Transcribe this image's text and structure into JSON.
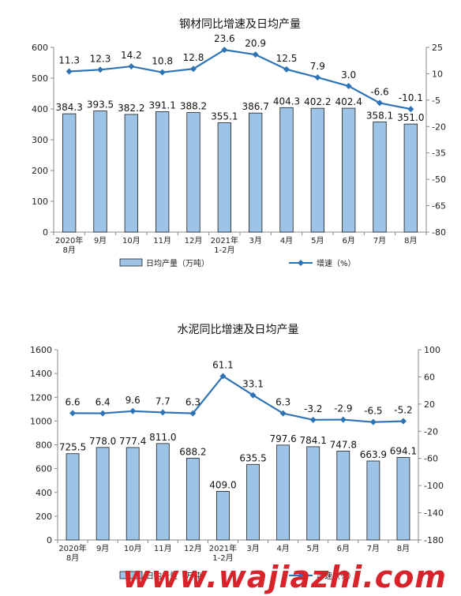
{
  "watermark": "www.wajiazhi.com",
  "chart_data": [
    {
      "type": "bar",
      "title": "钢材同比增速及日均产量",
      "categories": [
        "2020年\n8月",
        "9月",
        "10月",
        "11月",
        "12月",
        "2021年\n1-2月",
        "3月",
        "4月",
        "5月",
        "6月",
        "7月",
        "8月"
      ],
      "series": [
        {
          "name": "日均产量（万吨）",
          "type": "bar",
          "axis": "left",
          "values": [
            384.3,
            393.5,
            382.2,
            391.1,
            388.2,
            355.1,
            386.7,
            404.3,
            402.2,
            402.4,
            358.1,
            351.0
          ],
          "labels": [
            "384.3",
            "393.5",
            "382.2",
            "391.1",
            "388.2",
            "355.1",
            "386.7",
            "404.3",
            "402.2",
            "402.4",
            "358.1",
            "351.0"
          ]
        },
        {
          "name": "增速（%）",
          "type": "line",
          "axis": "right",
          "values": [
            11.3,
            12.3,
            14.2,
            10.8,
            12.8,
            23.6,
            20.9,
            12.5,
            7.9,
            3.0,
            -6.6,
            -10.1
          ],
          "labels": [
            "11.3",
            "12.3",
            "14.2",
            "10.8",
            "12.8",
            "23.6",
            "20.9",
            "12.5",
            "7.9",
            "3.0",
            "-6.6",
            "-10.1"
          ]
        }
      ],
      "ylim": [
        0,
        600
      ],
      "yticks": [
        "0",
        "100",
        "200",
        "300",
        "400",
        "500",
        "600"
      ],
      "y2lim": [
        -80,
        25
      ],
      "y2ticks": [
        "-80",
        "-65",
        "-50",
        "-35",
        "-20",
        "-5",
        "10",
        "25"
      ],
      "legend_position": "bottom",
      "colors": {
        "bar_fill": "#9dc3e6",
        "bar_stroke": "#1f1f1f",
        "line": "#2e74b5"
      }
    },
    {
      "type": "bar",
      "title": "水泥同比增速及日均产量",
      "categories": [
        "2020年\n8月",
        "9月",
        "10月",
        "11月",
        "12月",
        "2021年\n1-2月",
        "3月",
        "4月",
        "5月",
        "6月",
        "7月",
        "8月"
      ],
      "series": [
        {
          "name": "日均产量（万吨）",
          "type": "bar",
          "axis": "left",
          "values": [
            725.5,
            778.0,
            777.4,
            811.0,
            688.2,
            409.0,
            635.5,
            797.6,
            784.1,
            747.8,
            663.9,
            694.1
          ],
          "labels": [
            "725.5",
            "778.0",
            "777.4",
            "811.0",
            "688.2",
            "409.0",
            "635.5",
            "797.6",
            "784.1",
            "747.8",
            "663.9",
            "694.1"
          ]
        },
        {
          "name": "增速（%）",
          "type": "line",
          "axis": "right",
          "values": [
            6.6,
            6.4,
            9.6,
            7.7,
            6.3,
            61.1,
            33.1,
            6.3,
            -3.2,
            -2.9,
            -6.5,
            -5.2
          ],
          "labels": [
            "6.6",
            "6.4",
            "9.6",
            "7.7",
            "6.3",
            "61.1",
            "33.1",
            "6.3",
            "-3.2",
            "-2.9",
            "-6.5",
            "-5.2"
          ]
        }
      ],
      "ylim": [
        0,
        1600
      ],
      "yticks": [
        "0",
        "200",
        "400",
        "600",
        "800",
        "1000",
        "1200",
        "1400",
        "1600"
      ],
      "y2lim": [
        -180,
        100
      ],
      "y2ticks": [
        "-180",
        "-140",
        "-100",
        "-60",
        "-20",
        "20",
        "60",
        "100"
      ],
      "legend_position": "bottom",
      "colors": {
        "bar_fill": "#9dc3e6",
        "bar_stroke": "#1f1f1f",
        "line": "#2e74b5"
      }
    }
  ]
}
